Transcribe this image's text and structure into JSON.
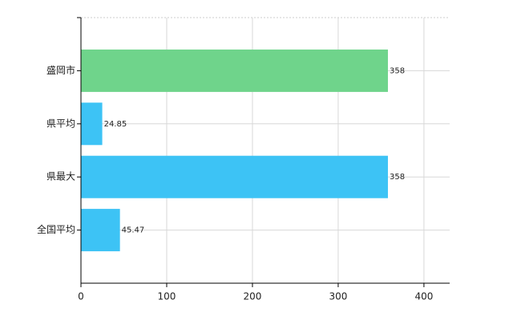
{
  "chart_data": {
    "type": "bar",
    "orientation": "horizontal",
    "categories": [
      "盛岡市",
      "県平均",
      "県最大",
      "全国平均"
    ],
    "values": [
      358,
      24.85,
      358,
      45.47
    ],
    "colors": [
      "#6fd48b",
      "#3dc3f5",
      "#3dc3f5",
      "#3dc3f5"
    ],
    "xlim": [
      0,
      430
    ],
    "xticks": [
      0,
      100,
      200,
      300,
      400
    ],
    "grid": true
  }
}
